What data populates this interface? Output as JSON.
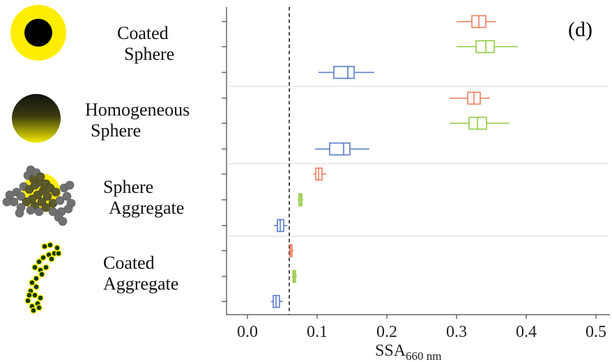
{
  "panel_label": "(d)",
  "groups": [
    {
      "line1": "Coated",
      "line2": "Sphere"
    },
    {
      "line1": "Homogeneous",
      "line2": "Sphere"
    },
    {
      "line1": "Sphere",
      "line2": "Aggregate"
    },
    {
      "line1": "Coated",
      "line2": "Aggregate"
    }
  ],
  "colors": {
    "orange": "#ee7b5c",
    "green": "#8fcc3c",
    "blue": "#5578cc",
    "yellow": "#ffee00",
    "black": "#000000"
  },
  "icons": [
    "coated-sphere-icon",
    "homogeneous-sphere-icon",
    "sphere-aggregate-icon",
    "coated-aggregate-icon"
  ],
  "chart_data": {
    "type": "boxplot",
    "xlabel_main": "SSA",
    "xlabel_sub": "660 nm",
    "xlim": [
      -0.03,
      0.52
    ],
    "xticks": [
      0.0,
      0.1,
      0.2,
      0.3,
      0.4,
      0.5
    ],
    "xtick_labels": [
      "0.0",
      "0.1",
      "0.2",
      "0.3",
      "0.4",
      "0.5"
    ],
    "reference_line": 0.06,
    "grid": false,
    "boxes": [
      {
        "group": 0,
        "series": 0,
        "color": "orange",
        "whisker_low": 0.3,
        "q1": 0.322,
        "median": 0.332,
        "q3": 0.342,
        "whisker_high": 0.356
      },
      {
        "group": 0,
        "series": 1,
        "color": "green",
        "whisker_low": 0.3,
        "q1": 0.328,
        "median": 0.342,
        "q3": 0.354,
        "whisker_high": 0.388
      },
      {
        "group": 0,
        "series": 2,
        "color": "blue",
        "whisker_low": 0.102,
        "q1": 0.124,
        "median": 0.144,
        "q3": 0.153,
        "whisker_high": 0.182
      },
      {
        "group": 1,
        "series": 0,
        "color": "orange",
        "whisker_low": 0.29,
        "q1": 0.316,
        "median": 0.325,
        "q3": 0.334,
        "whisker_high": 0.348
      },
      {
        "group": 1,
        "series": 1,
        "color": "green",
        "whisker_low": 0.29,
        "q1": 0.318,
        "median": 0.33,
        "q3": 0.343,
        "whisker_high": 0.376
      },
      {
        "group": 1,
        "series": 2,
        "color": "blue",
        "whisker_low": 0.097,
        "q1": 0.118,
        "median": 0.138,
        "q3": 0.147,
        "whisker_high": 0.175
      },
      {
        "group": 2,
        "series": 0,
        "color": "orange",
        "whisker_low": 0.094,
        "q1": 0.098,
        "median": 0.102,
        "q3": 0.107,
        "whisker_high": 0.113
      },
      {
        "group": 2,
        "series": 1,
        "color": "green",
        "whisker_low": 0.072,
        "q1": 0.074,
        "median": 0.076,
        "q3": 0.078,
        "whisker_high": 0.08
      },
      {
        "group": 2,
        "series": 2,
        "color": "blue",
        "whisker_low": 0.038,
        "q1": 0.043,
        "median": 0.047,
        "q3": 0.052,
        "whisker_high": 0.057
      },
      {
        "group": 3,
        "series": 0,
        "color": "orange",
        "whisker_low": 0.06,
        "q1": 0.061,
        "median": 0.062,
        "q3": 0.064,
        "whisker_high": 0.066
      },
      {
        "group": 3,
        "series": 1,
        "color": "green",
        "whisker_low": 0.064,
        "q1": 0.0655,
        "median": 0.067,
        "q3": 0.069,
        "whisker_high": 0.071
      },
      {
        "group": 3,
        "series": 2,
        "color": "blue",
        "whisker_low": 0.034,
        "q1": 0.037,
        "median": 0.041,
        "q3": 0.046,
        "whisker_high": 0.051
      }
    ]
  }
}
